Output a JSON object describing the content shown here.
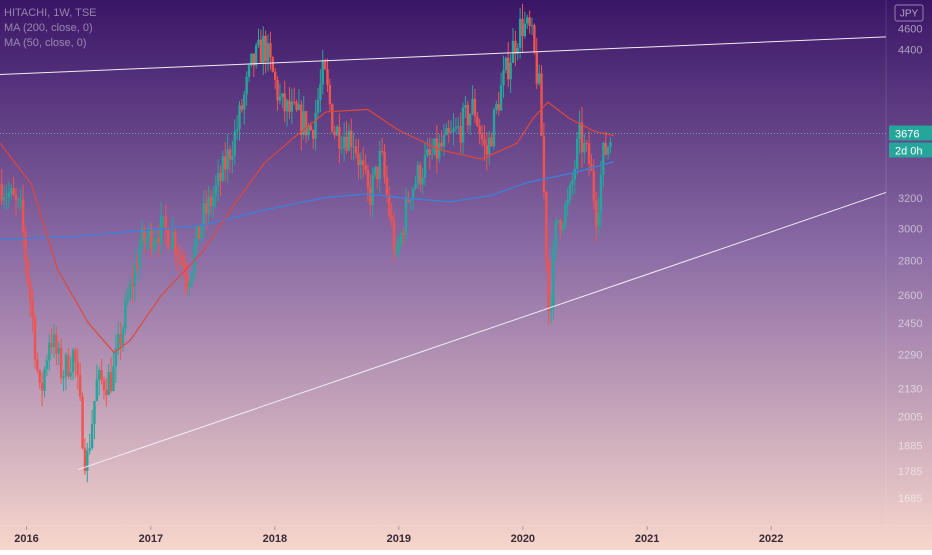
{
  "legend": {
    "line1": "HITACHI, 1W, TSE",
    "line2": "MA (200, close, 0)",
    "line3": "MA (50, close, 0)"
  },
  "currency_button": "JPY",
  "price_label": "3676",
  "countdown_label": "2d 0h",
  "colors": {
    "bg_top": "#3a1566",
    "bg_mid": "#8a6aa4",
    "bg_bottom": "#f7d6cc",
    "up": "#26a69a",
    "down": "#ef5350",
    "ma200": "#3f7fd6",
    "ma50": "#e0473a",
    "trendline": "#f2ecf6",
    "badge": "#26a69a"
  },
  "chart_data": {
    "type": "candlestick",
    "ticker": "HITACHI",
    "interval": "1W",
    "exchange": "TSE",
    "y_scale": "log",
    "ylim": [
      1600,
      4850
    ],
    "y_ticks": [
      4600,
      4400,
      3200,
      3000,
      2800,
      2600,
      2450,
      2290,
      2130,
      2005,
      1885,
      1785,
      1685
    ],
    "y_tick_labels": [
      "4600",
      "4400",
      "3200",
      "3000",
      "2800",
      "2600",
      "2450",
      "2290",
      "2130",
      "2005",
      "1885",
      "1785",
      "1685"
    ],
    "xlim": [
      "2015-10-15",
      "2022-12-05"
    ],
    "x_ticks": [
      "2016-01-01",
      "2017-01-01",
      "2018-01-01",
      "2019-01-01",
      "2020-01-01",
      "2021-01-01",
      "2022-01-01"
    ],
    "x_tick_labels": [
      "2016",
      "2017",
      "2018",
      "2019",
      "2020",
      "2021",
      "2022"
    ],
    "last_price": 3676,
    "price_path": [
      [
        "2015-10-20",
        3300
      ],
      [
        "2015-12-15",
        3100
      ],
      [
        "2016-01-20",
        2450
      ],
      [
        "2016-02-10",
        2080
      ],
      [
        "2016-03-10",
        2400
      ],
      [
        "2016-04-15",
        2200
      ],
      [
        "2016-05-20",
        2300
      ],
      [
        "2016-06-25",
        1800
      ],
      [
        "2016-07-25",
        2150
      ],
      [
        "2016-09-10",
        2180
      ],
      [
        "2016-10-20",
        2520
      ],
      [
        "2016-12-01",
        2900
      ],
      [
        "2017-01-20",
        3000
      ],
      [
        "2017-03-10",
        2950
      ],
      [
        "2017-04-20",
        2700
      ],
      [
        "2017-06-01",
        3050
      ],
      [
        "2017-07-20",
        3300
      ],
      [
        "2017-09-10",
        3700
      ],
      [
        "2017-10-25",
        4250
      ],
      [
        "2017-12-01",
        4450
      ],
      [
        "2018-01-20",
        3900
      ],
      [
        "2018-03-10",
        3800
      ],
      [
        "2018-04-20",
        3700
      ],
      [
        "2018-05-25",
        4200
      ],
      [
        "2018-06-25",
        3700
      ],
      [
        "2018-08-20",
        3650
      ],
      [
        "2018-10-05",
        3200
      ],
      [
        "2018-11-10",
        3500
      ],
      [
        "2018-12-25",
        2800
      ],
      [
        "2019-02-01",
        3250
      ],
      [
        "2019-03-20",
        3450
      ],
      [
        "2019-05-01",
        3550
      ],
      [
        "2019-06-25",
        3700
      ],
      [
        "2019-08-10",
        3900
      ],
      [
        "2019-09-15",
        3500
      ],
      [
        "2019-10-25",
        4000
      ],
      [
        "2019-12-01",
        4400
      ],
      [
        "2019-12-28",
        4650
      ],
      [
        "2020-01-25",
        4550
      ],
      [
        "2020-02-20",
        4000
      ],
      [
        "2020-03-18",
        2480
      ],
      [
        "2020-04-10",
        3050
      ],
      [
        "2020-05-15",
        3150
      ],
      [
        "2020-06-15",
        3650
      ],
      [
        "2020-07-15",
        3450
      ],
      [
        "2020-08-05",
        3100
      ],
      [
        "2020-08-25",
        3500
      ],
      [
        "2020-09-20",
        3676
      ]
    ],
    "ma200_path": [
      [
        "2015-10-15",
        2930
      ],
      [
        "2016-06-01",
        2950
      ],
      [
        "2016-12-01",
        2985
      ],
      [
        "2017-06-01",
        3020
      ],
      [
        "2017-12-01",
        3120
      ],
      [
        "2018-06-01",
        3205
      ],
      [
        "2018-10-01",
        3230
      ],
      [
        "2019-01-01",
        3205
      ],
      [
        "2019-06-01",
        3175
      ],
      [
        "2019-10-01",
        3220
      ],
      [
        "2020-01-15",
        3310
      ],
      [
        "2020-06-01",
        3380
      ],
      [
        "2020-09-25",
        3460
      ]
    ],
    "ma50_path": [
      [
        "2015-10-15",
        3600
      ],
      [
        "2016-01-15",
        3300
      ],
      [
        "2016-04-01",
        2750
      ],
      [
        "2016-07-01",
        2450
      ],
      [
        "2016-09-15",
        2300
      ],
      [
        "2016-11-01",
        2360
      ],
      [
        "2017-02-01",
        2600
      ],
      [
        "2017-06-01",
        2850
      ],
      [
        "2017-09-01",
        3150
      ],
      [
        "2017-12-01",
        3450
      ],
      [
        "2018-03-01",
        3650
      ],
      [
        "2018-06-01",
        3850
      ],
      [
        "2018-10-01",
        3870
      ],
      [
        "2019-01-01",
        3700
      ],
      [
        "2019-05-01",
        3550
      ],
      [
        "2019-09-01",
        3480
      ],
      [
        "2019-12-15",
        3600
      ],
      [
        "2020-02-01",
        3800
      ],
      [
        "2020-03-15",
        3930
      ],
      [
        "2020-05-15",
        3800
      ],
      [
        "2020-08-01",
        3690
      ],
      [
        "2020-09-25",
        3660
      ]
    ],
    "trendlines": [
      {
        "name": "resistance",
        "from": [
          "2015-10-15",
          4170
        ],
        "to": [
          "2022-12-05",
          4520
        ]
      },
      {
        "name": "support",
        "from": [
          "2016-06-01",
          1790
        ],
        "to": [
          "2022-12-05",
          3240
        ]
      }
    ]
  }
}
